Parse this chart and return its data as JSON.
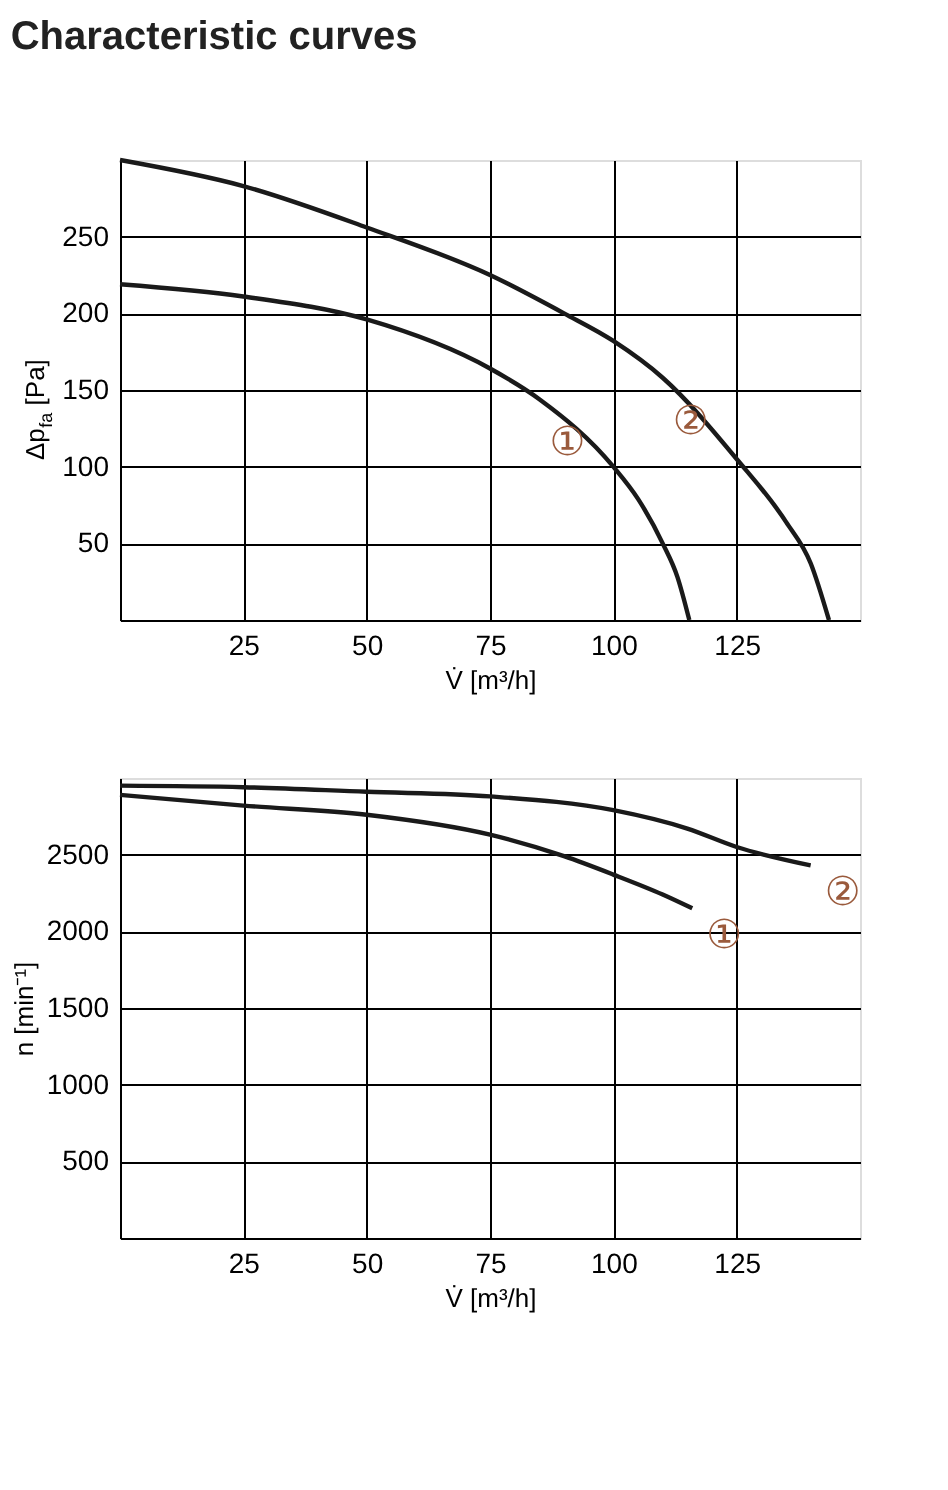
{
  "chart_data": [
    {
      "type": "line",
      "title": "Characteristic curves",
      "xlabel": "V̇ [m³/h]",
      "ylabel": "Δp$_{fa}$ [Pa]",
      "xlim": [
        0,
        150
      ],
      "ylim": [
        0,
        300
      ],
      "xticks": [
        25,
        50,
        75,
        100,
        125
      ],
      "yticks": [
        50,
        100,
        150,
        200,
        250
      ],
      "grid": true,
      "marker": "none",
      "line_style": "solid",
      "series": [
        {
          "color": "#1a1a1a",
          "x": [
            0,
            25,
            50,
            75,
            85,
            100,
            105,
            110,
            113,
            115.4
          ],
          "values": [
            219,
            211,
            196,
            164,
            144,
            100,
            79,
            50,
            28,
            0
          ]
        },
        {
          "color": "#1a1a1a",
          "x": [
            0,
            25,
            50,
            75,
            90,
            100,
            110,
            125,
            135,
            140,
            143.7
          ],
          "values": [
            300,
            283,
            256,
            225,
            200,
            182,
            158,
            105,
            64,
            37,
            0
          ]
        }
      ],
      "annotations": [
        "①",
        "②"
      ]
    },
    {
      "type": "line",
      "xlabel": "V̇ [m³/h]",
      "ylabel": "n [min⁻¹]",
      "xlim": [
        0,
        150
      ],
      "ylim": [
        0,
        3000
      ],
      "xticks": [
        25,
        50,
        75,
        100,
        125
      ],
      "yticks": [
        500,
        1000,
        1500,
        2000,
        2500
      ],
      "grid": true,
      "marker": "none",
      "line_style": "solid",
      "series": [
        {
          "color": "#1a1a1a",
          "x": [
            0,
            25,
            50,
            75,
            90,
            100,
            110,
            116
          ],
          "values": [
            2890,
            2820,
            2760,
            2630,
            2490,
            2370,
            2240,
            2150
          ]
        },
        {
          "color": "#1a1a1a",
          "x": [
            0,
            25,
            50,
            75,
            100,
            115,
            125,
            140
          ],
          "values": [
            2950,
            2940,
            2910,
            2880,
            2790,
            2670,
            2550,
            2430
          ]
        }
      ],
      "annotations": [
        "①",
        "②"
      ]
    }
  ]
}
